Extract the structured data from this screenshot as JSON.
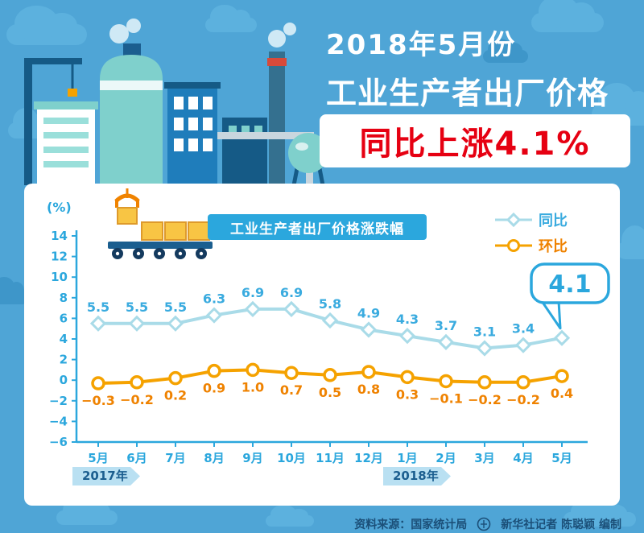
{
  "colors": {
    "sky": "#4FA5D6",
    "accent_blue": "#2BA7DD",
    "title_red": "#E60012",
    "axis": "#2BA7DD",
    "yoy_line": "#A9DBE8",
    "yoy_label": "#3AABDF",
    "mom_line": "#F5A200",
    "mom_label": "#EF8200",
    "flag_bg": "#B9E0F2",
    "flag_text": "#1B5E8F",
    "footer_text": "#1B4F78"
  },
  "header": {
    "title_line1": "2018年5月份",
    "title_line2": "工业生产者出厂价格",
    "highlight": "同比上涨4.1%"
  },
  "card": {
    "unit_label": "(%)",
    "banner": "工业生产者出厂价格涨跌幅",
    "legend": [
      {
        "label": "同比",
        "marker": "diamond"
      },
      {
        "label": "环比",
        "marker": "circle"
      }
    ],
    "callout_value": "4.1",
    "year_flags": [
      "2017年",
      "2018年"
    ]
  },
  "chart_data": {
    "type": "line",
    "title": "工业生产者出厂价格涨跌幅",
    "categories": [
      "5月",
      "6月",
      "7月",
      "8月",
      "9月",
      "10月",
      "11月",
      "12月",
      "1月",
      "2月",
      "3月",
      "4月",
      "5月"
    ],
    "series": [
      {
        "name": "同比",
        "marker": "diamond",
        "color": "#A9DBE8",
        "label_color": "#3AABDF",
        "label_position": "above",
        "callout_last": true,
        "values": [
          5.5,
          5.5,
          5.5,
          6.3,
          6.9,
          6.9,
          5.8,
          4.9,
          4.3,
          3.7,
          3.1,
          3.4,
          4.1
        ]
      },
      {
        "name": "环比",
        "marker": "circle",
        "color": "#F5A200",
        "label_color": "#EF8200",
        "label_position": "below",
        "values": [
          -0.3,
          -0.2,
          0.2,
          0.9,
          1.0,
          0.7,
          0.5,
          0.8,
          0.3,
          -0.1,
          -0.2,
          -0.2,
          0.4
        ]
      }
    ],
    "ylim": [
      -6,
      14
    ],
    "ytick_step": 2,
    "grid": false,
    "legend_position": "top-right",
    "x_axis_years": [
      {
        "label": "2017年",
        "at_category_index": 0
      },
      {
        "label": "2018年",
        "at_category_index": 8
      }
    ]
  },
  "footer": {
    "source": "资料来源：国家统计局",
    "credit": "新华社记者 陈聪颖 编制"
  }
}
